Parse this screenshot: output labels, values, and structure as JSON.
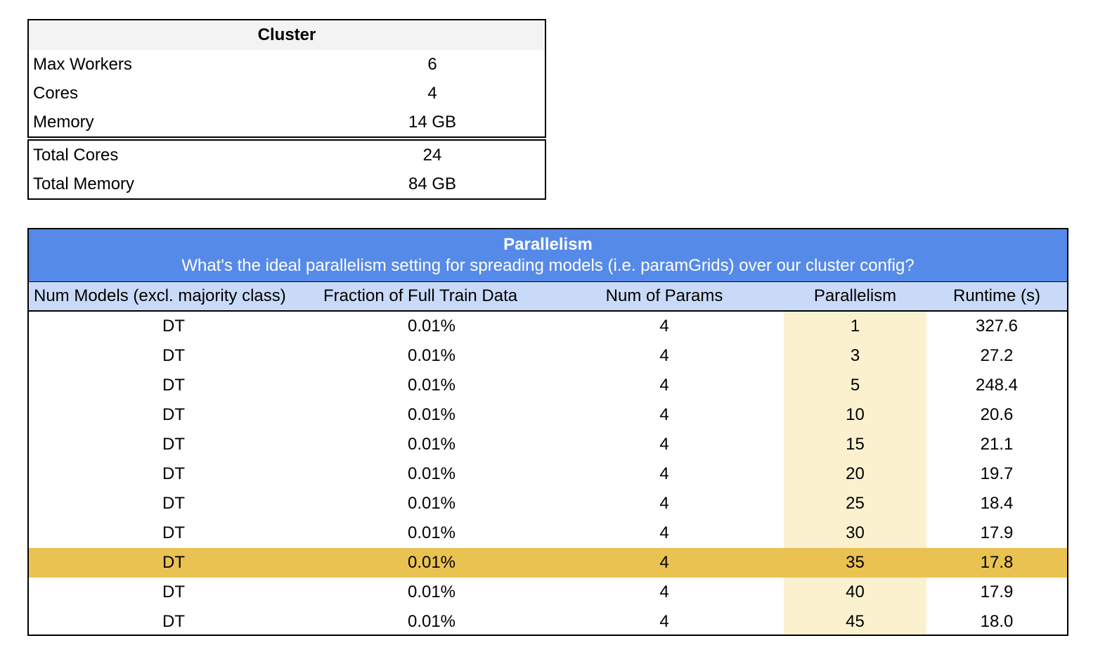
{
  "cluster": {
    "title": "Cluster",
    "rows": [
      {
        "label": "Max Workers",
        "value": "6"
      },
      {
        "label": "Cores",
        "value": "4"
      },
      {
        "label": "Memory",
        "value": "14 GB"
      }
    ],
    "totals": [
      {
        "label": "Total Cores",
        "value": "24"
      },
      {
        "label": "Total Memory",
        "value": "84 GB"
      }
    ]
  },
  "parallelism": {
    "title": "Parallelism",
    "subtitle": "What's the ideal parallelism setting for spreading models (i.e. paramGrids) over our cluster config?",
    "columns": [
      "Num Models (excl. majority class)",
      "Fraction of Full Train Data",
      "Num of Params",
      "Parallelism",
      "Runtime (s)"
    ],
    "rows": [
      [
        "DT",
        "0.01%",
        "4",
        "1",
        "327.6"
      ],
      [
        "DT",
        "0.01%",
        "4",
        "3",
        "27.2"
      ],
      [
        "DT",
        "0.01%",
        "4",
        "5",
        "248.4"
      ],
      [
        "DT",
        "0.01%",
        "4",
        "10",
        "20.6"
      ],
      [
        "DT",
        "0.01%",
        "4",
        "15",
        "21.1"
      ],
      [
        "DT",
        "0.01%",
        "4",
        "20",
        "19.7"
      ],
      [
        "DT",
        "0.01%",
        "4",
        "25",
        "18.4"
      ],
      [
        "DT",
        "0.01%",
        "4",
        "30",
        "17.9"
      ],
      [
        "DT",
        "0.01%",
        "4",
        "35",
        "17.8"
      ],
      [
        "DT",
        "0.01%",
        "4",
        "40",
        "17.9"
      ],
      [
        "DT",
        "0.01%",
        "4",
        "45",
        "18.0"
      ]
    ],
    "highlight_row": 8
  },
  "colors": {
    "header_blue": "#568ae8",
    "column_header_blue": "#c9daf8",
    "parallelism_column": "#fcf1cf",
    "highlight": "#e9c251"
  }
}
